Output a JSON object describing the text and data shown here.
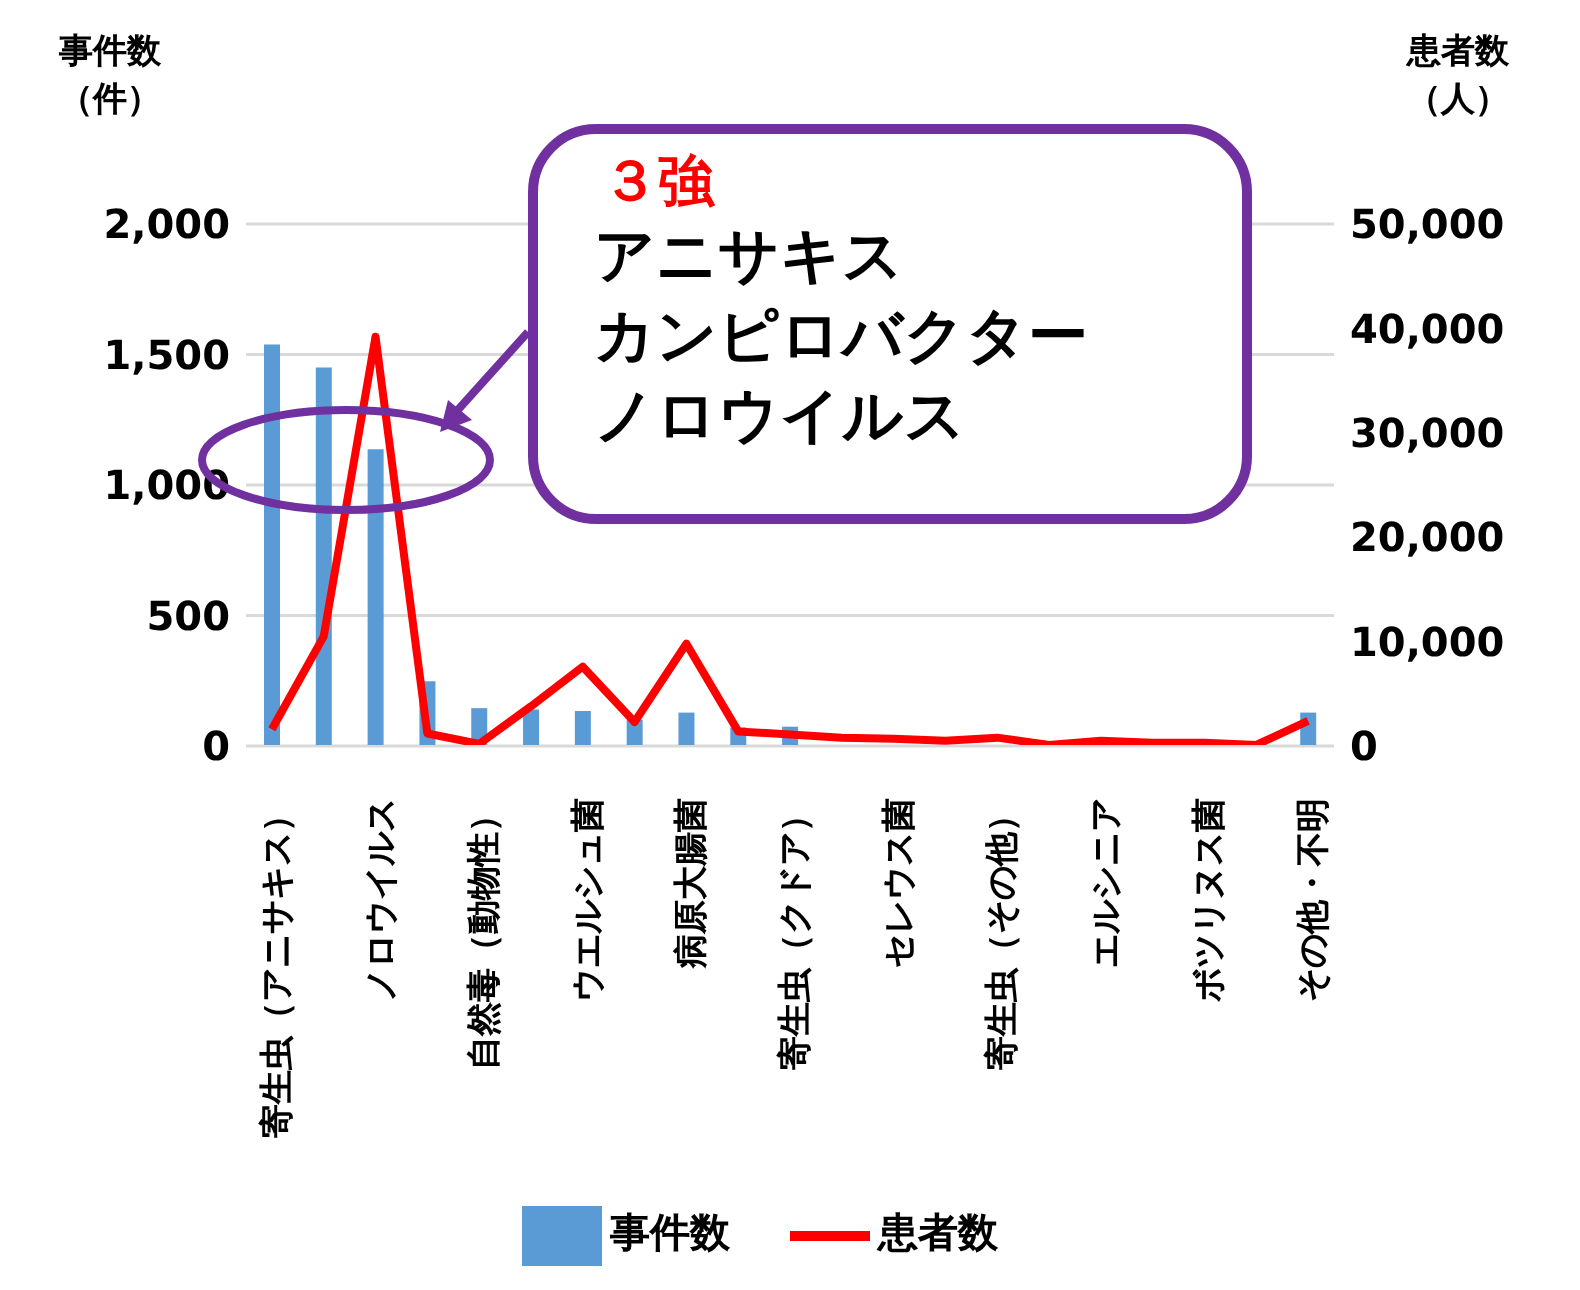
{
  "chart_data": {
    "type": "bar",
    "ylabel": "事件数（件）",
    "y2label": "患者数（人）",
    "categories": [
      "寄生虫（アニサキス）",
      null,
      "ノロウイルス",
      null,
      "自然毒（動物性）",
      null,
      "ウエルシュ菌",
      null,
      "病原大腸菌",
      null,
      "寄生虫（クドア）",
      null,
      "セレウス菌",
      null,
      "寄生虫（その他）",
      null,
      "エルシニア",
      null,
      "ボツリヌス菌",
      null,
      "その他・不明"
    ],
    "series": [
      {
        "name": "事件数",
        "color": "#5b9bd5",
        "values": [
          1538,
          1450,
          1137,
          248,
          145,
          140,
          134,
          100,
          128,
          71,
          74,
          null,
          null,
          null,
          null,
          null,
          null,
          null,
          null,
          null,
          128
        ]
      },
      {
        "name": "患者数",
        "type": "line",
        "axis": "y2",
        "color": "#ff0000",
        "values": [
          1600,
          10500,
          39200,
          1200,
          200,
          3800,
          7600,
          2300,
          9800,
          1400,
          1100,
          800,
          700,
          500,
          800,
          100,
          500,
          300,
          300,
          100,
          2400
        ]
      }
    ],
    "ylim": [
      0,
      2000
    ],
    "yticks": [
      0,
      500,
      {
        "value": 1000,
        "label": "1,000"
      },
      {
        "value": 1500,
        "label": "1,500"
      },
      {
        "value": 2000,
        "label": "2,000"
      }
    ],
    "y2lim": [
      0,
      50000
    ],
    "y2ticks": [
      0,
      {
        "value": 10000,
        "label": "10,000"
      },
      {
        "value": 20000,
        "label": "20,000"
      },
      {
        "value": 30000,
        "label": "30,000"
      },
      {
        "value": 40000,
        "label": "40,000"
      },
      {
        "value": 50000,
        "label": "50,000"
      }
    ],
    "grid": "y",
    "legend": "bottom",
    "marker": "none",
    "annotations": [
      "３強",
      "アニサキス",
      "カンピロバクター",
      "ノロウイルス"
    ]
  }
}
